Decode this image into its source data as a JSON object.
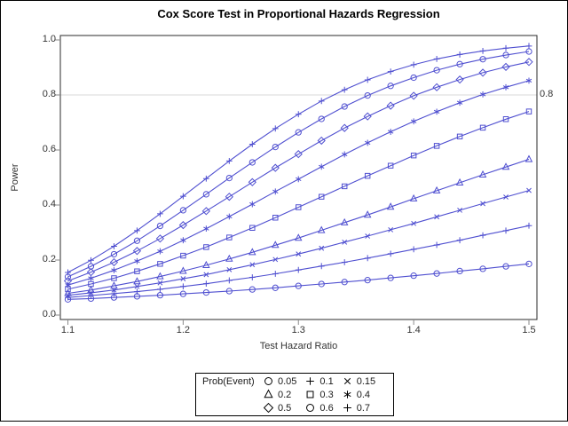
{
  "figure": {
    "title": "Cox Score Test in Proportional Hazards Regression",
    "xlabel": "Test Hazard Ratio",
    "ylabel": "Power",
    "refline_label": "0.8"
  },
  "chart_data": {
    "type": "line",
    "title": "Cox Score Test in Proportional Hazards Regression",
    "xlabel": "Test Hazard Ratio",
    "ylabel": "Power",
    "xlim": [
      1.1,
      1.5
    ],
    "ylim": [
      0.0,
      1.0
    ],
    "xticks": [
      1.1,
      1.2,
      1.3,
      1.4,
      1.5
    ],
    "yticks": [
      0.0,
      0.2,
      0.4,
      0.6,
      0.8,
      1.0
    ],
    "grid": false,
    "refline_y": 0.8,
    "legend_title": "Prob(Event)",
    "legend_position": "bottom-outside",
    "line_color": "#4f4fd0",
    "refline_color": "#d8d8d8",
    "legend_marker_color": "#000000",
    "x": [
      1.1,
      1.12,
      1.14,
      1.16,
      1.18,
      1.2,
      1.22,
      1.24,
      1.26,
      1.28,
      1.3,
      1.32,
      1.34,
      1.36,
      1.38,
      1.4,
      1.42,
      1.44,
      1.46,
      1.48,
      1.5
    ],
    "series": [
      {
        "name": "0.05",
        "marker": "circle",
        "values": [
          0.057,
          0.06,
          0.064,
          0.068,
          0.072,
          0.077,
          0.082,
          0.087,
          0.093,
          0.099,
          0.106,
          0.113,
          0.12,
          0.127,
          0.135,
          0.143,
          0.151,
          0.16,
          0.168,
          0.177,
          0.186
        ]
      },
      {
        "name": "0.1",
        "marker": "plus",
        "values": [
          0.064,
          0.071,
          0.078,
          0.085,
          0.094,
          0.104,
          0.114,
          0.126,
          0.137,
          0.15,
          0.164,
          0.178,
          0.192,
          0.207,
          0.223,
          0.239,
          0.255,
          0.272,
          0.29,
          0.307,
          0.325
        ]
      },
      {
        "name": "0.15",
        "marker": "x",
        "values": [
          0.072,
          0.081,
          0.091,
          0.104,
          0.117,
          0.132,
          0.147,
          0.165,
          0.183,
          0.202,
          0.222,
          0.243,
          0.265,
          0.287,
          0.31,
          0.333,
          0.357,
          0.381,
          0.405,
          0.429,
          0.453
        ]
      },
      {
        "name": "0.2",
        "marker": "triangle",
        "values": [
          0.079,
          0.091,
          0.106,
          0.122,
          0.14,
          0.16,
          0.181,
          0.204,
          0.228,
          0.254,
          0.28,
          0.308,
          0.336,
          0.364,
          0.393,
          0.423,
          0.452,
          0.481,
          0.51,
          0.538,
          0.566
        ]
      },
      {
        "name": "0.3",
        "marker": "square",
        "values": [
          0.094,
          0.113,
          0.134,
          0.159,
          0.186,
          0.216,
          0.247,
          0.282,
          0.317,
          0.354,
          0.392,
          0.43,
          0.468,
          0.506,
          0.543,
          0.58,
          0.615,
          0.649,
          0.681,
          0.712,
          0.74
        ]
      },
      {
        "name": "0.4",
        "marker": "star",
        "values": [
          0.109,
          0.134,
          0.163,
          0.196,
          0.232,
          0.272,
          0.314,
          0.358,
          0.403,
          0.449,
          0.494,
          0.539,
          0.584,
          0.626,
          0.666,
          0.704,
          0.739,
          0.772,
          0.802,
          0.828,
          0.852
        ]
      },
      {
        "name": "0.5",
        "marker": "diamond",
        "values": [
          0.124,
          0.156,
          0.192,
          0.233,
          0.278,
          0.327,
          0.378,
          0.43,
          0.483,
          0.535,
          0.585,
          0.634,
          0.68,
          0.722,
          0.761,
          0.797,
          0.828,
          0.856,
          0.881,
          0.902,
          0.92
        ]
      },
      {
        "name": "0.6",
        "marker": "circle",
        "values": [
          0.139,
          0.177,
          0.221,
          0.27,
          0.324,
          0.381,
          0.439,
          0.498,
          0.555,
          0.611,
          0.664,
          0.713,
          0.758,
          0.798,
          0.833,
          0.863,
          0.89,
          0.912,
          0.93,
          0.945,
          0.958
        ]
      },
      {
        "name": "0.7",
        "marker": "plus",
        "values": [
          0.155,
          0.199,
          0.25,
          0.307,
          0.368,
          0.432,
          0.496,
          0.56,
          0.621,
          0.678,
          0.73,
          0.778,
          0.819,
          0.855,
          0.885,
          0.91,
          0.931,
          0.947,
          0.96,
          0.97,
          0.978
        ]
      }
    ]
  }
}
